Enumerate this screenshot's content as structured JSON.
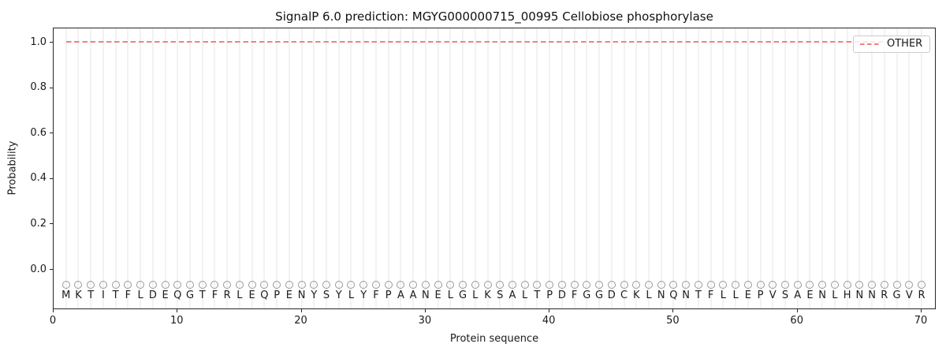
{
  "title": "SignalP 6.0 prediction: MGYG000000715_00995 Cellobiose phosphorylase",
  "legend": {
    "position": "upper right",
    "entries": [
      {
        "label": "OTHER",
        "color": "#f08080",
        "line_style": "dashed"
      }
    ]
  },
  "chart_data": {
    "type": "line",
    "title": "SignalP 6.0 prediction: MGYG000000715_00995 Cellobiose phosphorylase",
    "xlabel": "Protein sequence",
    "ylabel": "Probability",
    "x_ticks": [
      0,
      10,
      20,
      30,
      40,
      50,
      60,
      70
    ],
    "y_ticks": [
      0.0,
      0.2,
      0.4,
      0.6,
      0.8,
      1.0
    ],
    "xlim": [
      0,
      71.2
    ],
    "ylim": [
      -0.18,
      1.06
    ],
    "grid": {
      "axis": "x",
      "one_line_per_residue": true,
      "color": "#f2f2f2"
    },
    "legend_position": "upper right",
    "series": [
      {
        "name": "OTHER",
        "color": "#f08080",
        "line_style": "dashed",
        "x_range": [
          1,
          70
        ],
        "y_constant": 1.0,
        "note": "constant probability 1.0 across all 70 residue positions"
      }
    ],
    "sequence": "MKTITFLDEQGTFRLEQPENYSYLYFPAANELGLKSALTPDFGGDCKLNQNTFLLEPVSAENLHNNRGVR",
    "sequence_length": 70,
    "residue_marker": {
      "shape": "open-circle",
      "color": "#999999",
      "y_position": -0.07
    },
    "residue_letter_y": -0.12
  }
}
